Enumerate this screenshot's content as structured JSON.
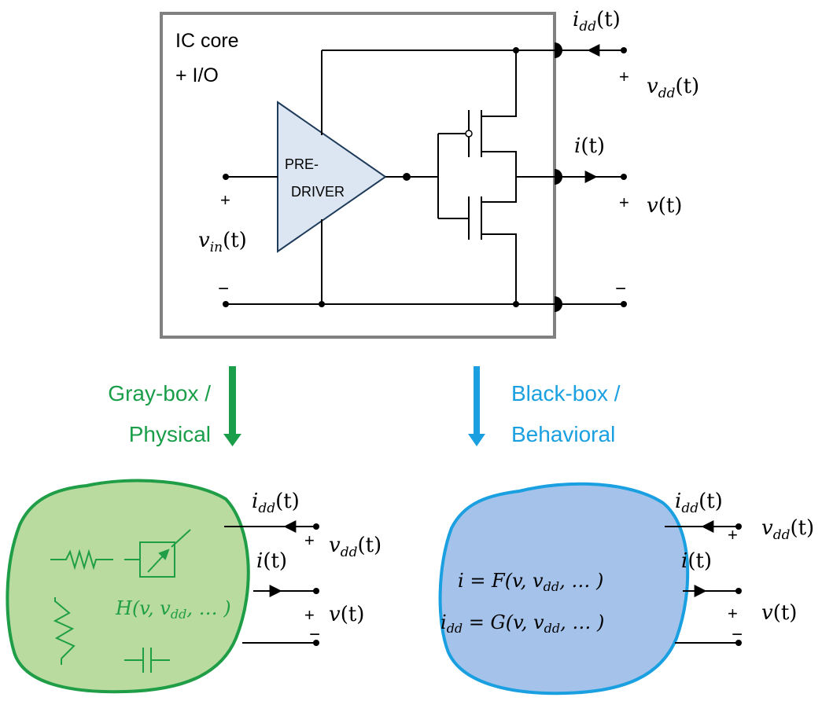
{
  "top": {
    "box_label_1": "IC core",
    "box_label_2": "+ I/O",
    "predriver_1": "PRE-",
    "predriver_2": "DRIVER",
    "idd_label": "i",
    "idd_sub": "dd",
    "vdd_label": "v",
    "vdd_sub": "dd",
    "i_label": "i",
    "v_label": "v",
    "vin_label": "v",
    "vin_sub": "in",
    "t_arg": "(t)",
    "plus": "+",
    "minus": "−"
  },
  "arrows": {
    "gray_line1": "Gray-box /",
    "gray_line2": "Physical",
    "black_line1": "Black-box /",
    "black_line2": "Behavioral"
  },
  "gray_model": {
    "h_func": "H",
    "h_args": "(v, v",
    "h_sub": "dd",
    "h_tail": ", … )",
    "idd": "i",
    "idd_sub": "dd",
    "vdd": "v",
    "vdd_sub": "dd",
    "i": "i",
    "v": "v",
    "t_arg": "(t)",
    "plus": "+",
    "minus": "−"
  },
  "black_model": {
    "eq1_lhs": "i",
    "eq1_rhs": " = F(v, v",
    "eq1_sub": "dd",
    "eq1_tail": ", … )",
    "eq2_lhs": "i",
    "eq2_lhs_sub": "dd",
    "eq2_rhs": " = G(v, v",
    "eq2_sub": "dd",
    "eq2_tail": ", … )",
    "idd": "i",
    "idd_sub": "dd",
    "vdd": "v",
    "vdd_sub": "dd",
    "i": "i",
    "v": "v",
    "t_arg": "(t)",
    "plus": "+",
    "minus": "−"
  },
  "colors": {
    "box_border": "#808080",
    "predriver_fill": "#dce6f2",
    "gray_text": "#1a9e4a",
    "gray_fill": "#b9dba0",
    "gray_stroke": "#1f9e47",
    "black_text": "#1aa0e0",
    "black_fill": "#a4c2ea",
    "black_stroke": "#1aa0e0"
  }
}
